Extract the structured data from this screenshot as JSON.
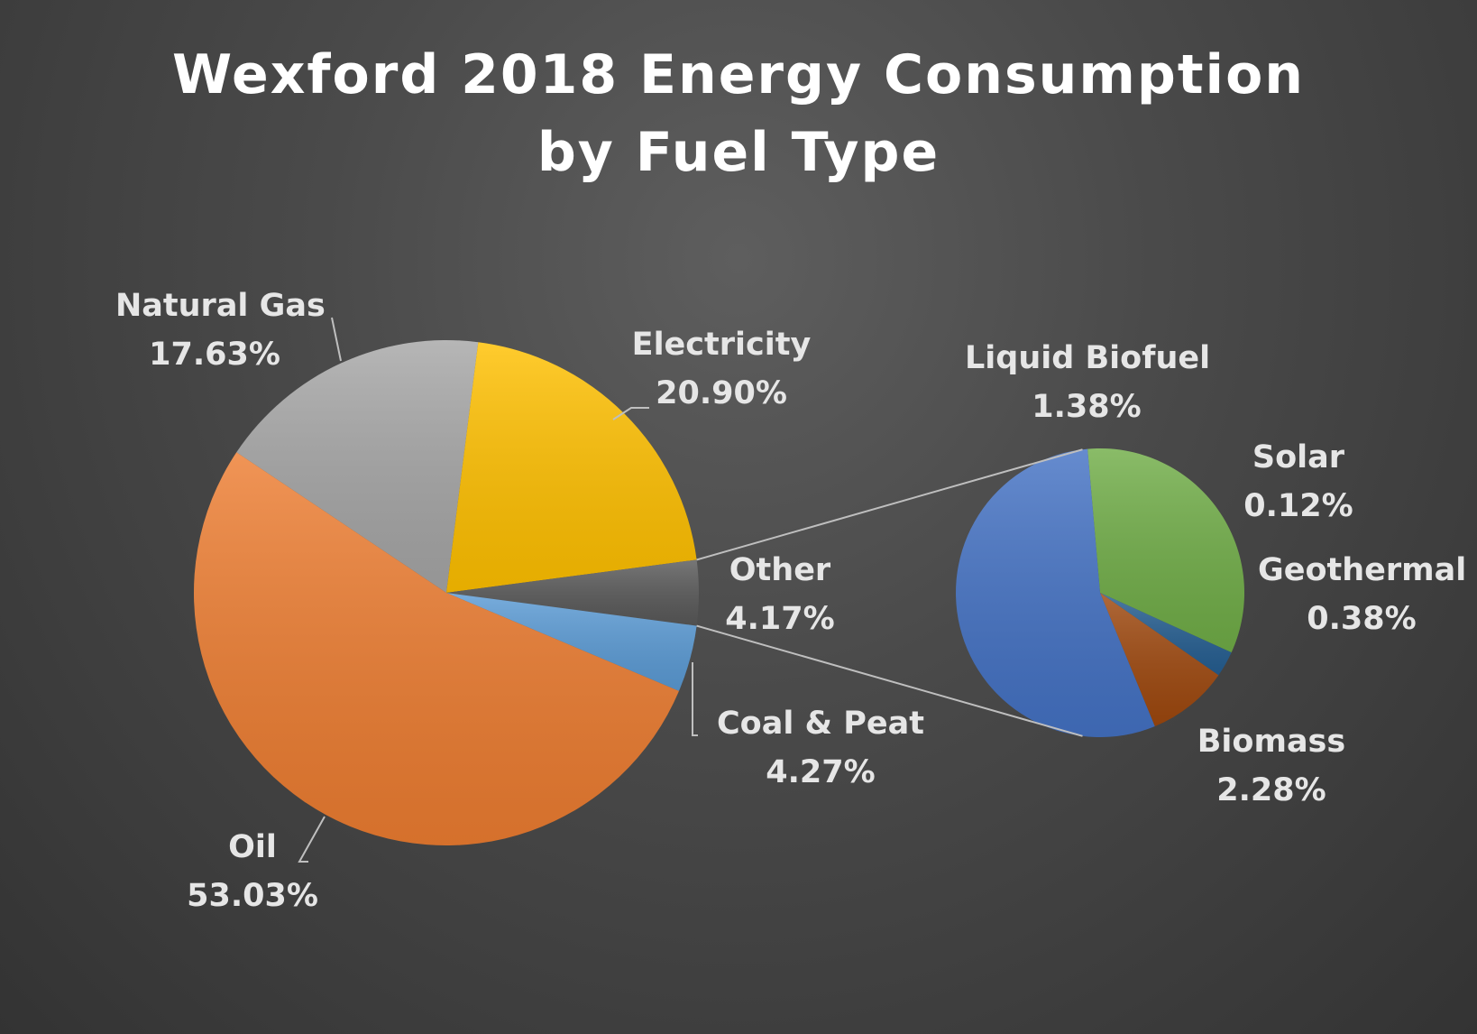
{
  "chart_data": {
    "type": "pie",
    "title_line1": "Wexford 2018 Energy Consumption",
    "title_line2": "by Fuel Type",
    "main_pie": [
      {
        "name": "Natural Gas",
        "value": 17.63,
        "label": "17.63%",
        "color": "#a6a6a6"
      },
      {
        "name": "Electricity",
        "value": 20.9,
        "label": "20.90%",
        "color": "#ffc000"
      },
      {
        "name": "Other",
        "value": 4.17,
        "label": "4.17%",
        "color": "#595959"
      },
      {
        "name": "Coal & Peat",
        "value": 4.27,
        "label": "4.27%",
        "color": "#5b9bd5"
      },
      {
        "name": "Oil",
        "value": 53.03,
        "label": "53.03%",
        "color": "#ed7d31"
      }
    ],
    "secondary_pie": [
      {
        "name": "Liquid Biofuel",
        "value": 1.38,
        "label": "1.38%",
        "color": "#70ad47"
      },
      {
        "name": "Solar",
        "value": 0.12,
        "label": "0.12%",
        "color": "#255e91"
      },
      {
        "name": "Geothermal",
        "value": 0.38,
        "label": "0.38%",
        "color": "#9e480e"
      },
      {
        "name": "Biomass",
        "value": 2.28,
        "label": "2.28%",
        "color": "#4472c4"
      }
    ],
    "exploded_category": "Other"
  }
}
